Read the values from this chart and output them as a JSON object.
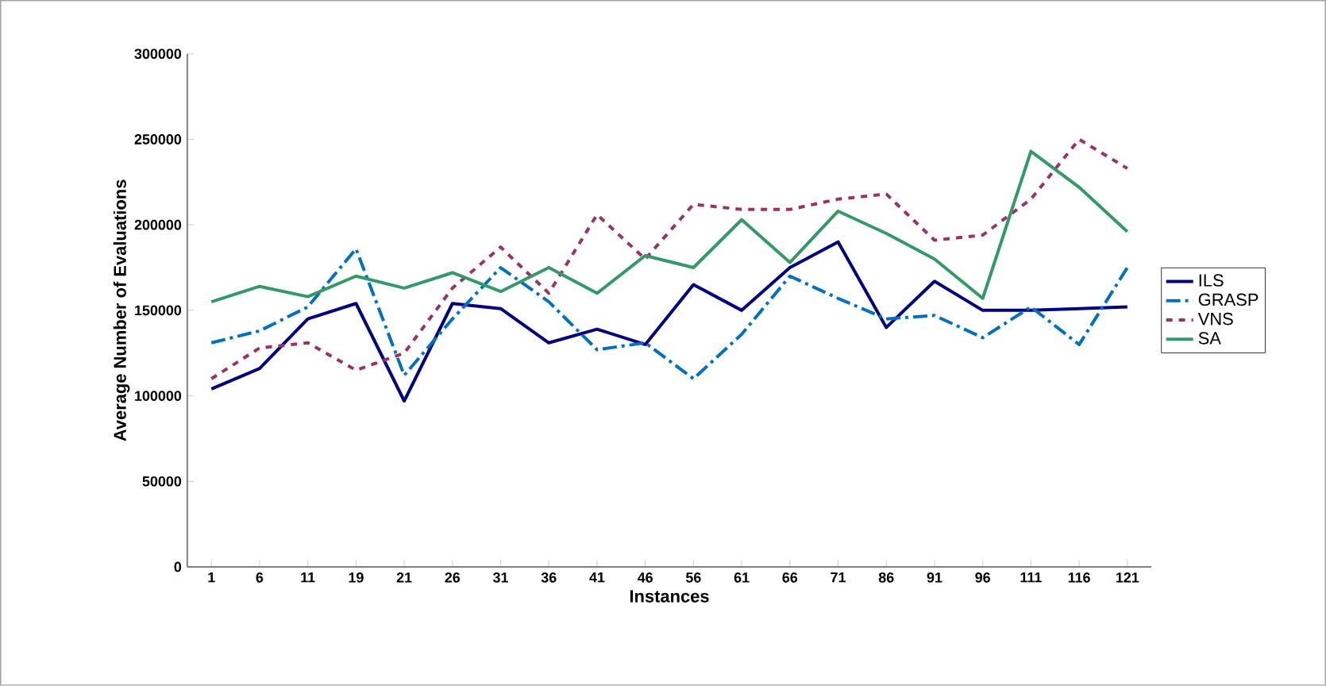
{
  "chart_data": {
    "type": "line",
    "xlabel": "Instances",
    "ylabel": "Average Number of Evaluations",
    "categories": [
      "1",
      "6",
      "11",
      "19",
      "21",
      "26",
      "31",
      "36",
      "41",
      "46",
      "56",
      "61",
      "66",
      "71",
      "86",
      "91",
      "96",
      "111",
      "116",
      "121"
    ],
    "ylim": [
      0,
      300000
    ],
    "yticks": [
      0,
      50000,
      100000,
      150000,
      200000,
      250000,
      300000
    ],
    "grid": false,
    "legend": "right",
    "marker": "none",
    "series": [
      {
        "name": "ILS",
        "color": "#000080",
        "line_style": "solid",
        "values": [
          104000,
          116000,
          145000,
          154000,
          97000,
          154000,
          151000,
          131000,
          139000,
          130000,
          165000,
          150000,
          175000,
          190000,
          140000,
          167000,
          150000,
          150000,
          151000,
          152000
        ]
      },
      {
        "name": "GRASP",
        "color": "#0070c0",
        "line_style": "dashdot",
        "values": [
          131000,
          138000,
          152000,
          186000,
          112000,
          145000,
          175000,
          155000,
          127000,
          131000,
          110000,
          136000,
          170000,
          157000,
          145000,
          147000,
          134000,
          152000,
          130000,
          175000
        ]
      },
      {
        "name": "VNS",
        "color": "#993366",
        "line_style": "dashed",
        "values": [
          110000,
          128000,
          131000,
          115000,
          125000,
          163000,
          187000,
          160000,
          206000,
          180000,
          212000,
          209000,
          209000,
          215000,
          218000,
          191000,
          194000,
          215000,
          250000,
          233000
        ]
      },
      {
        "name": "SA",
        "color": "#339966",
        "line_style": "solid",
        "values": [
          155000,
          164000,
          158000,
          170000,
          163000,
          172000,
          161000,
          175000,
          160000,
          182000,
          175000,
          203000,
          178000,
          208000,
          195000,
          180000,
          157000,
          243000,
          222000,
          196000
        ]
      }
    ]
  }
}
